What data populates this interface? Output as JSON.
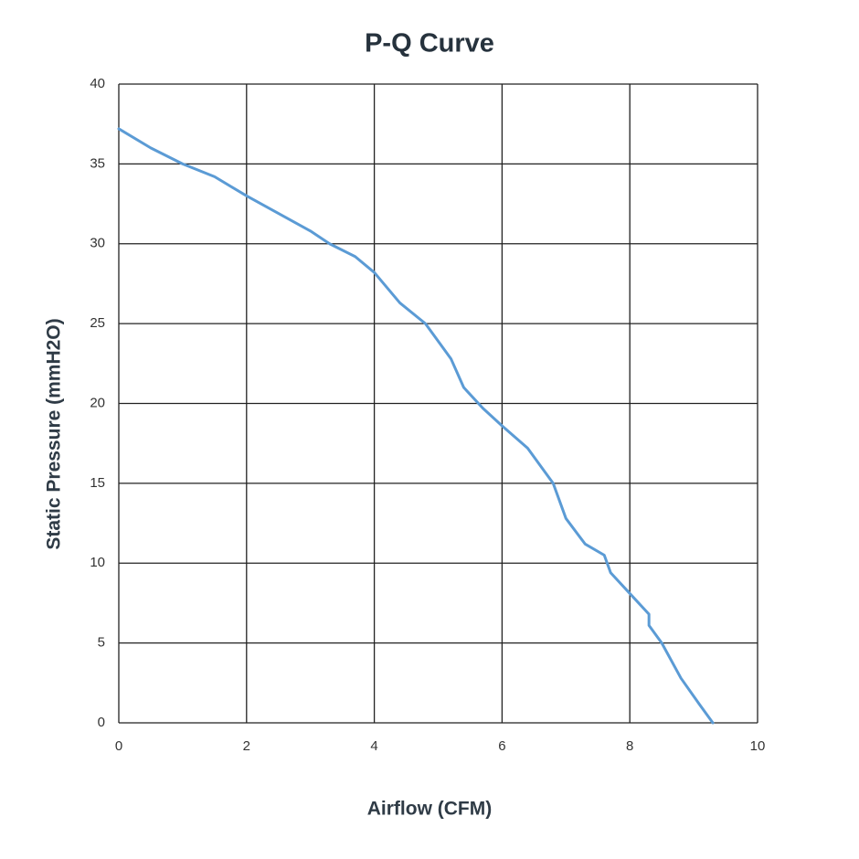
{
  "chart_data": {
    "type": "line",
    "title": "P-Q Curve",
    "x_label": "Airflow (CFM)",
    "y_label": "Static Pressure (mmH2O)",
    "x": [
      0,
      0.5,
      1,
      1.5,
      2,
      2.5,
      3,
      3.3,
      3.7,
      4,
      4.4,
      4.8,
      5.2,
      5.4,
      5.7,
      6,
      6.4,
      6.8,
      7,
      7.3,
      7.6,
      7.7,
      8,
      8.3,
      8.3,
      8.5,
      8.8,
      9.1,
      9.3
    ],
    "series": [
      {
        "name": "P-Q",
        "color": "#5b9bd5",
        "values": [
          37.2,
          36,
          35,
          34.2,
          33,
          31.9,
          30.8,
          30,
          29.2,
          28.2,
          26.3,
          25,
          22.8,
          21,
          19.7,
          18.6,
          17.2,
          15,
          12.8,
          11.2,
          10.5,
          9.4,
          8.1,
          6.8,
          6.1,
          5,
          2.8,
          1.1,
          0
        ]
      }
    ],
    "xlim": [
      0,
      10
    ],
    "xticks": [
      0,
      2,
      4,
      6,
      8,
      10
    ],
    "ylim": [
      0,
      40
    ],
    "yticks": [
      0,
      5,
      10,
      15,
      20,
      25,
      30,
      35,
      40
    ],
    "grid": true
  }
}
